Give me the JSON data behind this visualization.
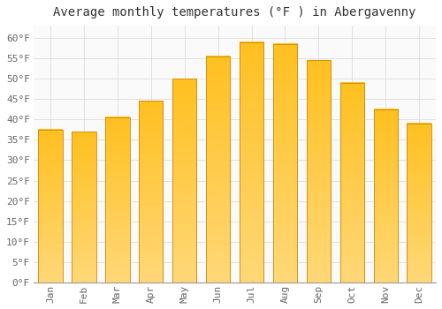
{
  "title": "Average monthly temperatures (°F ) in Abergavenny",
  "months": [
    "Jan",
    "Feb",
    "Mar",
    "Apr",
    "May",
    "Jun",
    "Jul",
    "Aug",
    "Sep",
    "Oct",
    "Nov",
    "Dec"
  ],
  "values": [
    37.5,
    37.0,
    40.5,
    44.5,
    50.0,
    55.5,
    59.0,
    58.5,
    54.5,
    49.0,
    42.5,
    39.0
  ],
  "bar_color_top": "#FFC020",
  "bar_color_bottom": "#FFD878",
  "bar_edge_color": "#CC8800",
  "ylim": [
    0,
    63
  ],
  "yticks": [
    0,
    5,
    10,
    15,
    20,
    25,
    30,
    35,
    40,
    45,
    50,
    55,
    60
  ],
  "background_color": "#FFFFFF",
  "plot_bg_color": "#FAFAFA",
  "grid_color": "#DDDDDD",
  "title_fontsize": 10,
  "tick_fontsize": 8,
  "font_family": "monospace"
}
